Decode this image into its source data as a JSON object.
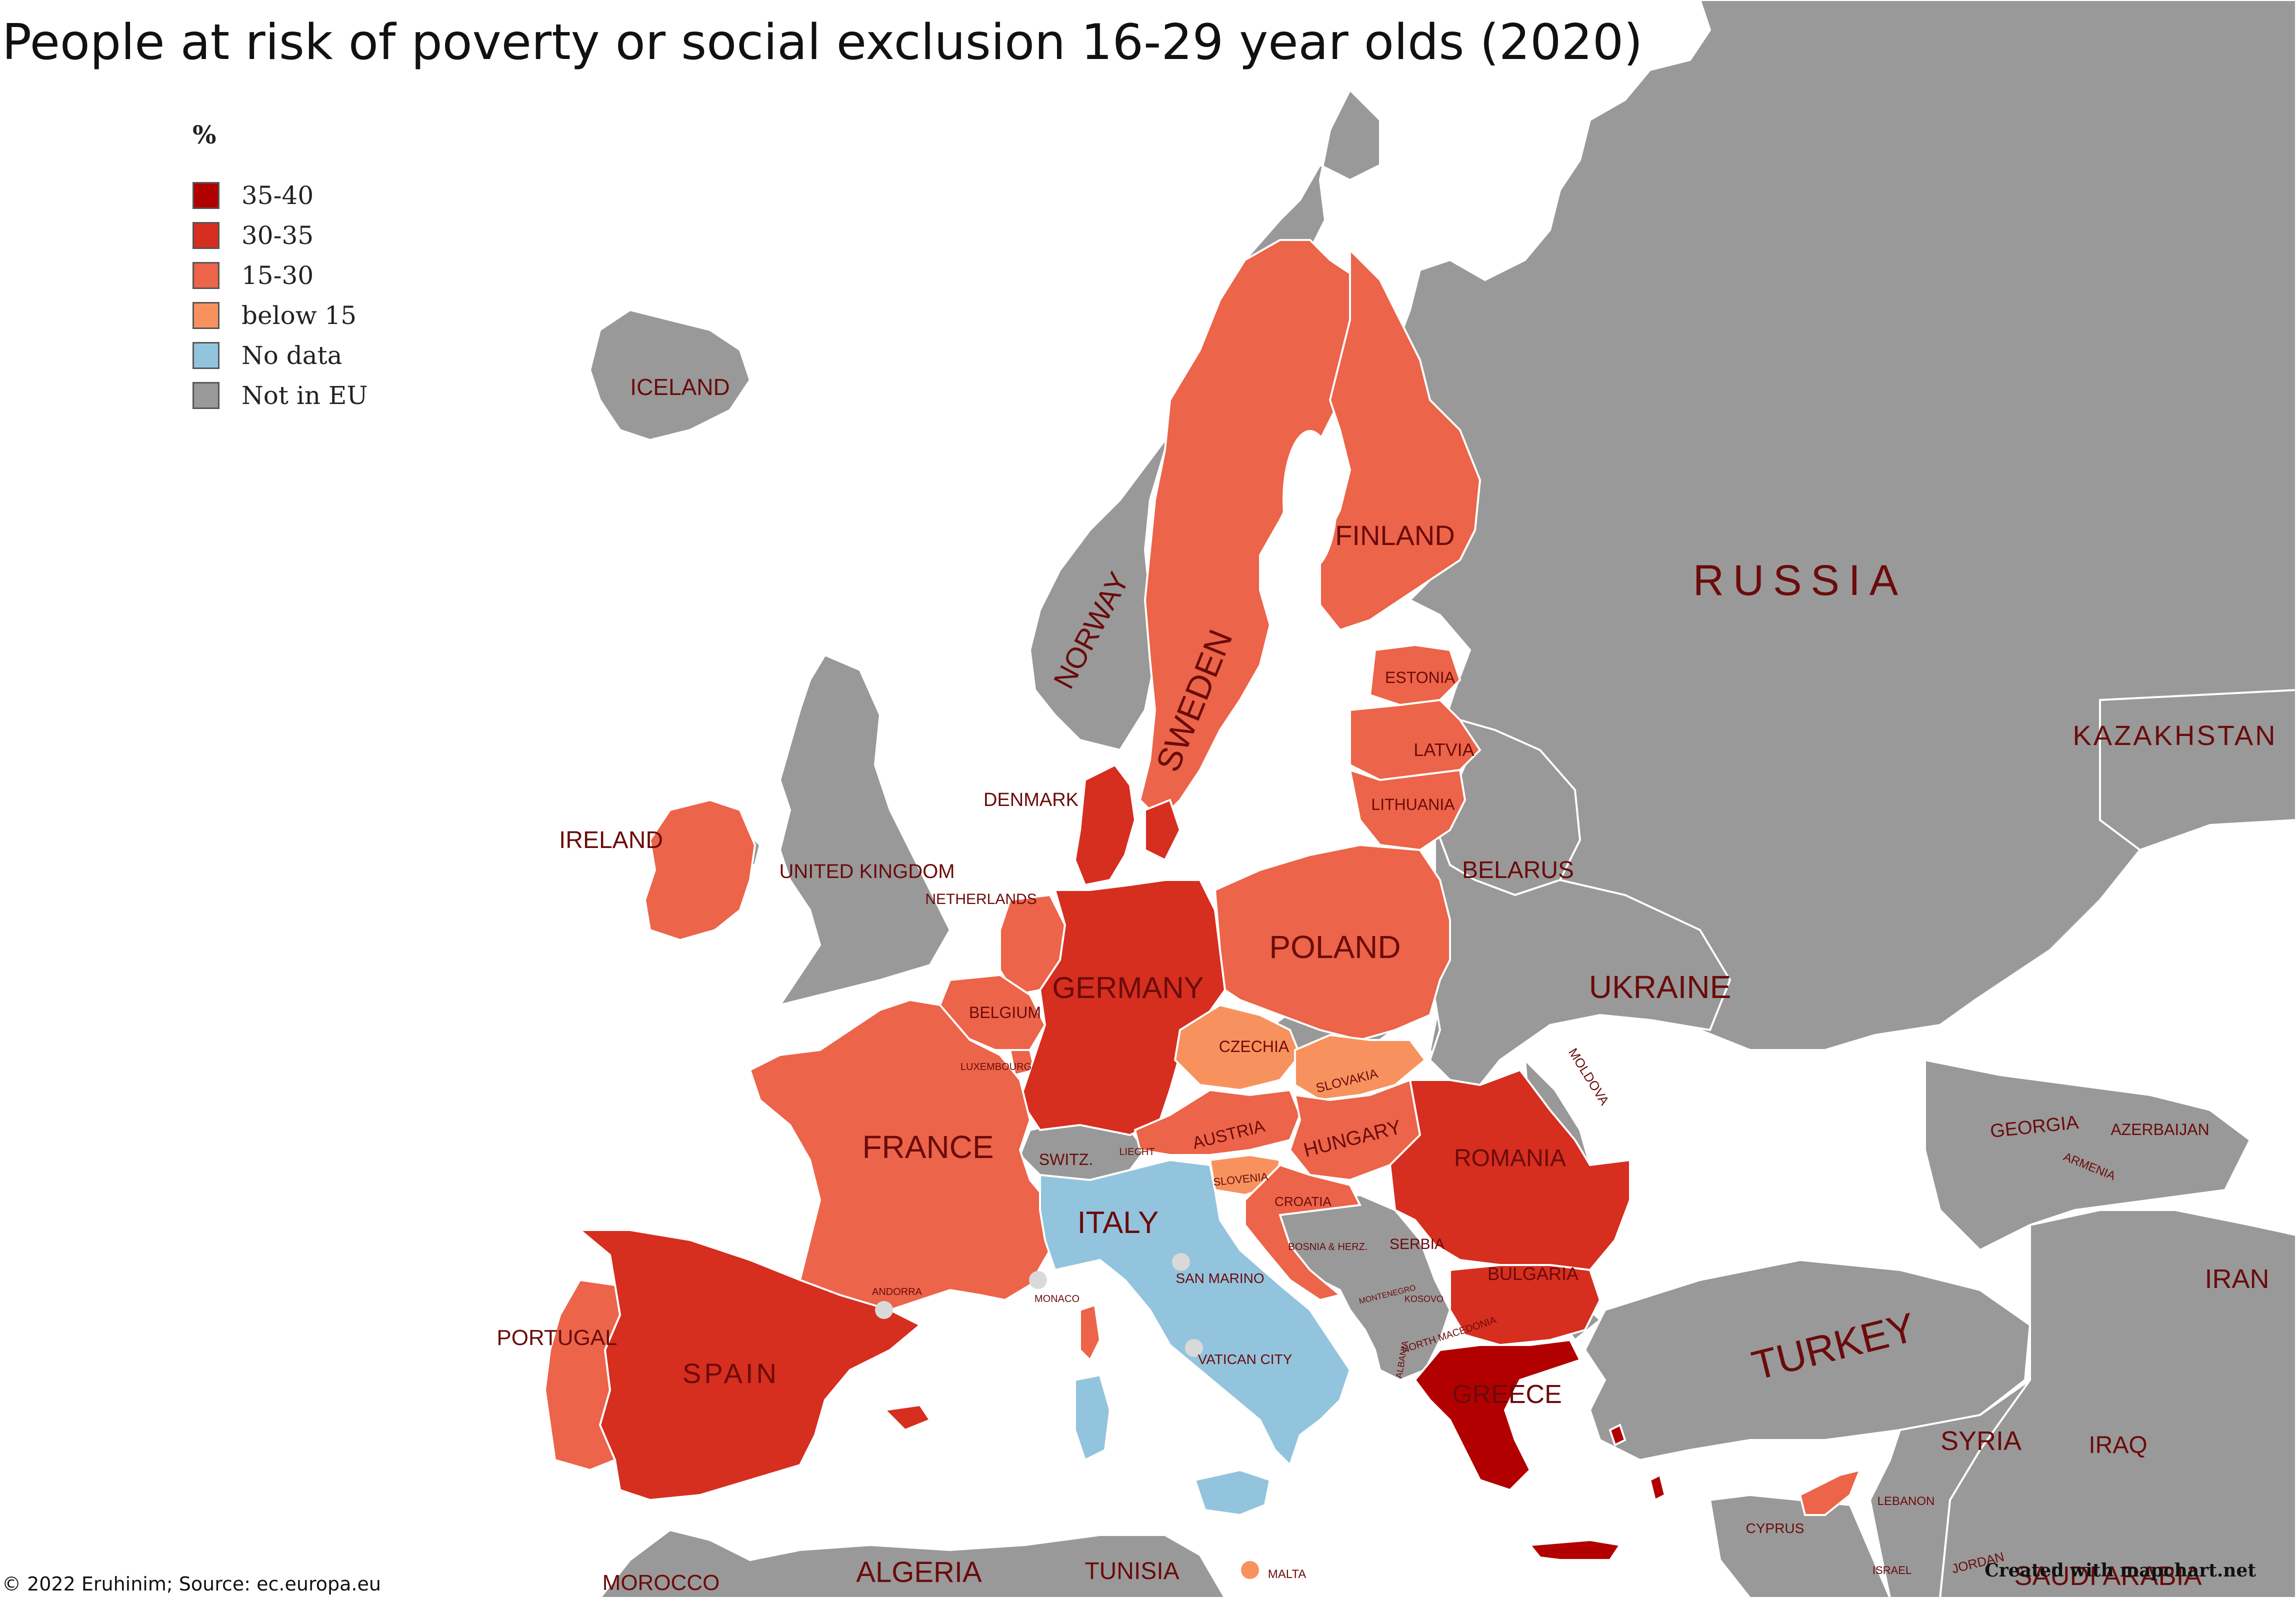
{
  "title": "People at risk of poverty or social exclusion 16-29 year olds (2020)",
  "legend": {
    "title": "%",
    "items": [
      {
        "label": "35-40",
        "color": "#b20000"
      },
      {
        "label": "30-35",
        "color": "#d62e1f"
      },
      {
        "label": "15-30",
        "color": "#ec6449"
      },
      {
        "label": "below 15",
        "color": "#f7925e"
      },
      {
        "label": "No data",
        "color": "#93c4de"
      },
      {
        "label": "Not in EU",
        "color": "#999999"
      }
    ]
  },
  "colors": {
    "sea": "#ffffff",
    "lake": "#ffffff",
    "border": "#ffffff",
    "label": "#6b0b0b",
    "microstate": "#d9d9d9"
  },
  "countries": {
    "iceland": {
      "label": "ICELAND",
      "category": "Not in EU"
    },
    "norway": {
      "label": "NORWAY",
      "category": "Not in EU"
    },
    "sweden": {
      "label": "SWEDEN",
      "category": "15-30"
    },
    "finland": {
      "label": "FINLAND",
      "category": "15-30"
    },
    "russia": {
      "label": "RUSSIA",
      "category": "Not in EU"
    },
    "kazakhstan": {
      "label": "KAZAKHSTAN",
      "category": "Not in EU"
    },
    "estonia": {
      "label": "ESTONIA",
      "category": "15-30"
    },
    "latvia": {
      "label": "LATVIA",
      "category": "15-30"
    },
    "lithuania": {
      "label": "LITHUANIA",
      "category": "15-30"
    },
    "belarus": {
      "label": "BELARUS",
      "category": "Not in EU"
    },
    "ireland": {
      "label": "IRELAND",
      "category": "15-30"
    },
    "united_kingdom": {
      "label": "UNITED KINGDOM",
      "category": "Not in EU"
    },
    "denmark": {
      "label": "DENMARK",
      "category": "30-35"
    },
    "netherlands": {
      "label": "NETHERLANDS",
      "category": "15-30"
    },
    "germany": {
      "label": "GERMANY",
      "category": "30-35"
    },
    "poland": {
      "label": "POLAND",
      "category": "15-30"
    },
    "ukraine": {
      "label": "UKRAINE",
      "category": "Not in EU"
    },
    "belgium": {
      "label": "BELGIUM",
      "category": "15-30"
    },
    "luxembourg": {
      "label": "LUXEMBOURG",
      "category": "15-30"
    },
    "czechia": {
      "label": "CZECHIA",
      "category": "below 15"
    },
    "slovakia": {
      "label": "SLOVAKIA",
      "category": "below 15"
    },
    "moldova": {
      "label": "MOLDOVA",
      "category": "Not in EU"
    },
    "france": {
      "label": "FRANCE",
      "category": "15-30"
    },
    "switzerland": {
      "label": "SWITZ.",
      "category": "Not in EU"
    },
    "liechtenstein": {
      "label": "LIECHT",
      "category": "Not in EU"
    },
    "austria": {
      "label": "AUSTRIA",
      "category": "15-30"
    },
    "hungary": {
      "label": "HUNGARY",
      "category": "15-30"
    },
    "romania": {
      "label": "ROMANIA",
      "category": "30-35"
    },
    "slovenia": {
      "label": "SLOVENIA",
      "category": "below 15"
    },
    "croatia": {
      "label": "CROATIA",
      "category": "15-30"
    },
    "italy": {
      "label": "ITALY",
      "category": "No data"
    },
    "bosnia": {
      "label": "BOSNIA & HERZ.",
      "category": "Not in EU"
    },
    "serbia": {
      "label": "SERBIA",
      "category": "Not in EU"
    },
    "montenegro": {
      "label": "MONTENEGRO",
      "category": "Not in EU"
    },
    "kosovo": {
      "label": "KOSOVO",
      "category": "Not in EU"
    },
    "north_macedonia": {
      "label": "NORTH MACEDONIA",
      "category": "Not in EU"
    },
    "albania": {
      "label": "ALBANIA",
      "category": "Not in EU"
    },
    "bulgaria": {
      "label": "BULGARIA",
      "category": "30-35"
    },
    "greece": {
      "label": "GREECE",
      "category": "35-40"
    },
    "turkey": {
      "label": "TURKEY",
      "category": "Not in EU"
    },
    "georgia": {
      "label": "GEORGIA",
      "category": "Not in EU"
    },
    "armenia": {
      "label": "ARMENIA",
      "category": "Not in EU"
    },
    "azerbaijan": {
      "label": "AZERBAIJAN",
      "category": "Not in EU"
    },
    "iran": {
      "label": "IRAN",
      "category": "Not in EU"
    },
    "syria": {
      "label": "SYRIA",
      "category": "Not in EU"
    },
    "iraq": {
      "label": "IRAQ",
      "category": "Not in EU"
    },
    "lebanon": {
      "label": "LEBANON",
      "category": "Not in EU"
    },
    "israel": {
      "label": "ISRAEL",
      "category": "Not in EU"
    },
    "jordan": {
      "label": "JORDAN",
      "category": "Not in EU"
    },
    "saudi_arabia": {
      "label": "SAUDI ARABIA",
      "category": "Not in EU"
    },
    "cyprus": {
      "label": "CYPRUS",
      "category": "15-30"
    },
    "portugal": {
      "label": "PORTUGAL",
      "category": "15-30"
    },
    "spain": {
      "label": "SPAIN",
      "category": "30-35"
    },
    "andorra": {
      "label": "ANDORRA",
      "category": "Not in EU"
    },
    "monaco": {
      "label": "MONACO",
      "category": "Not in EU"
    },
    "san_marino": {
      "label": "SAN MARINO",
      "category": "Not in EU"
    },
    "vatican_city": {
      "label": "VATICAN CITY",
      "category": "Not in EU"
    },
    "malta": {
      "label": "MALTA",
      "category": "below 15"
    },
    "morocco": {
      "label": "MOROCCO",
      "category": "Not in EU"
    },
    "algeria": {
      "label": "ALGERIA",
      "category": "Not in EU"
    },
    "tunisia": {
      "label": "TUNISIA",
      "category": "Not in EU"
    }
  },
  "footer": "© 2022 Eruhinim; Source: ec.europa.eu",
  "credit": "Created with mapchart.net"
}
